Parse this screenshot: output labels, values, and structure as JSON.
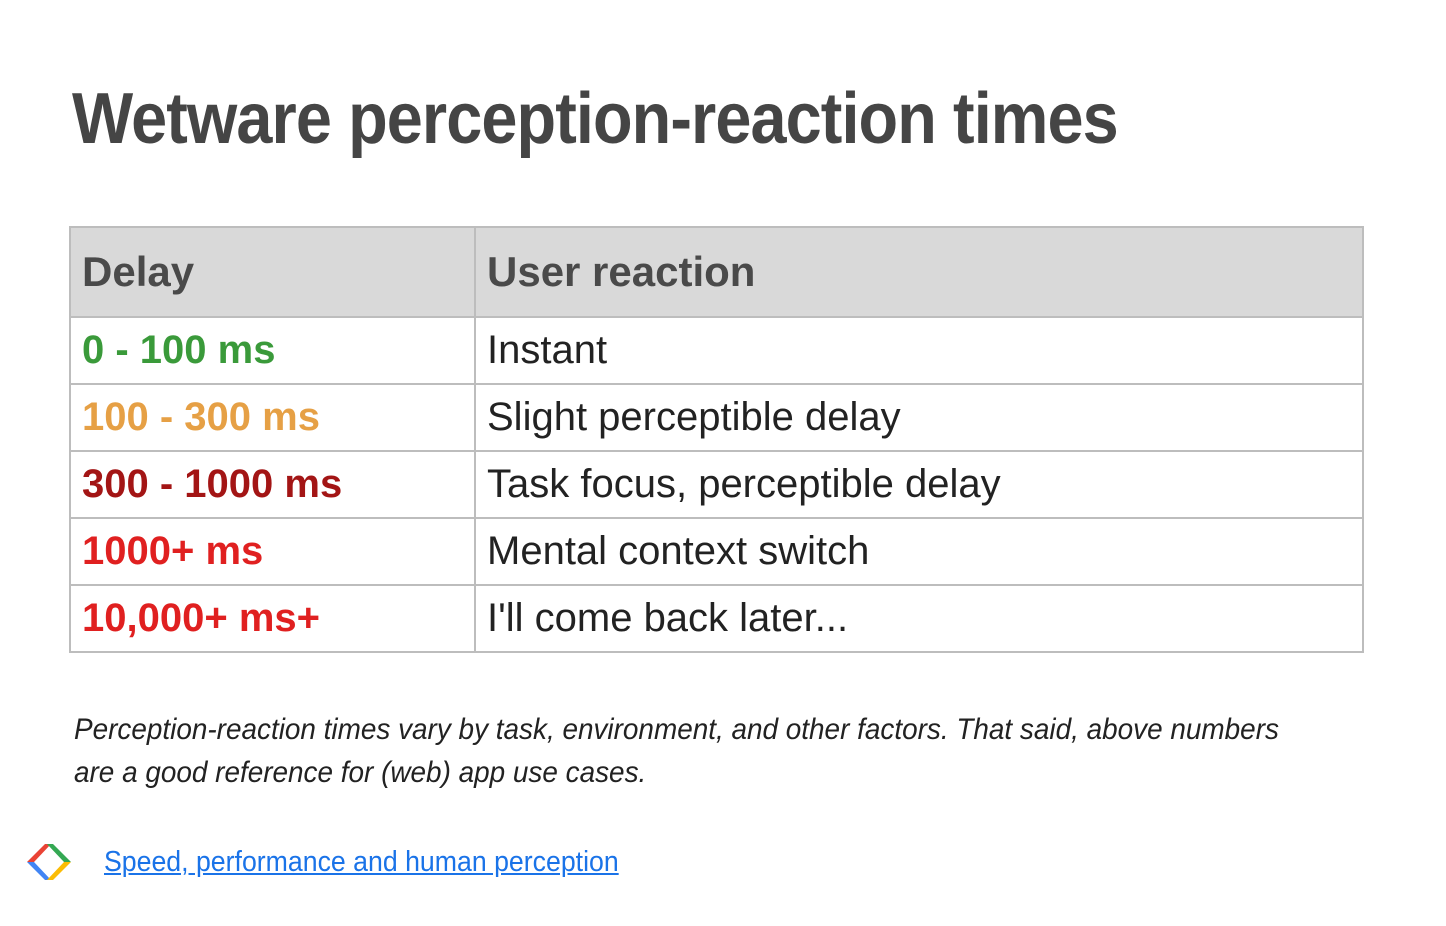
{
  "title": "Wetware perception-reaction times",
  "table": {
    "headers": [
      "Delay",
      "User reaction"
    ],
    "rows": [
      {
        "delay": "0 - 100 ms",
        "reaction": "Instant",
        "color": "#3a9a3a"
      },
      {
        "delay": "100 - 300 ms",
        "reaction": "Slight perceptible delay",
        "color": "#e6a045"
      },
      {
        "delay": "300 - 1000 ms",
        "reaction": "Task focus, perceptible delay",
        "color": "#a31515"
      },
      {
        "delay": "1000+ ms",
        "reaction": "Mental context switch",
        "color": "#e02020"
      },
      {
        "delay": "10,000+ ms+",
        "reaction": "I'll come back later...",
        "color": "#e02020"
      }
    ]
  },
  "note": "Perception-reaction times vary by task, environment, and other factors. That said, above numbers are a good reference for (web) app use cases.",
  "footer": {
    "logo_icon": "google-developers-logo-icon",
    "link_text": "Speed, performance and human perception"
  }
}
